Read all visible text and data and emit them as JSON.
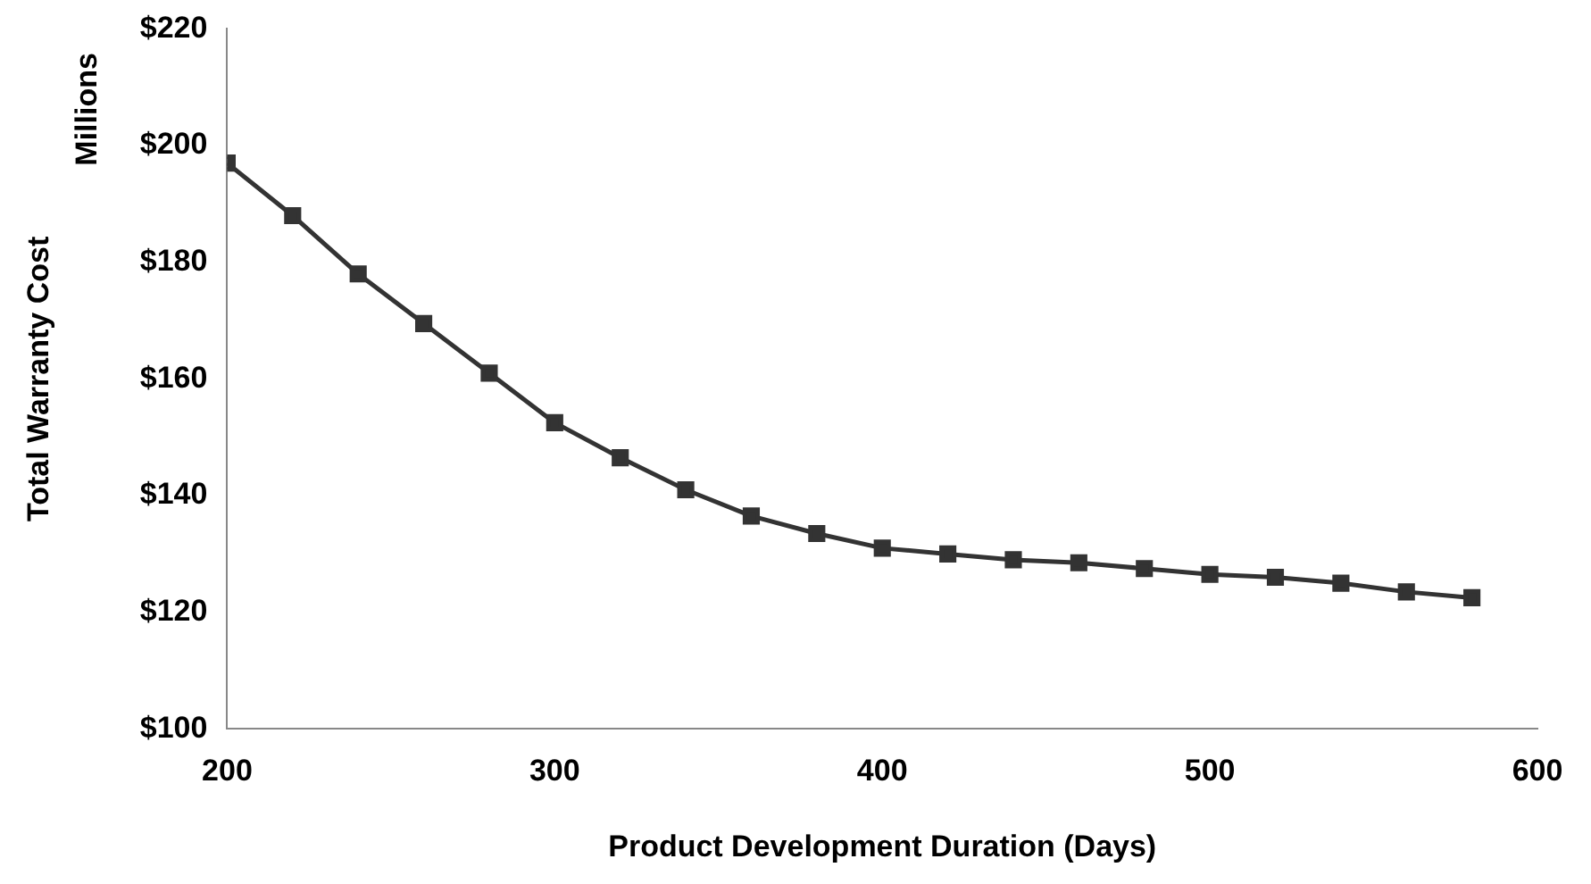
{
  "chart_data": {
    "type": "line",
    "xlabel": "Product Development Duration (Days)",
    "ylabel": "Total Warranty Cost",
    "annotations": [
      "Millions"
    ],
    "x": [
      200,
      220,
      240,
      260,
      280,
      300,
      320,
      340,
      360,
      380,
      400,
      420,
      440,
      460,
      480,
      500,
      520,
      540,
      560,
      580
    ],
    "series": [
      {
        "color": "#333333",
        "values": [
          197,
          188,
          178,
          169.5,
          161,
          152.5,
          146.5,
          141,
          136.5,
          133.5,
          131,
          130,
          129,
          128.5,
          127.5,
          126.5,
          126,
          125,
          123.5,
          122.5
        ]
      }
    ],
    "xlim": [
      200,
      600
    ],
    "xticks": [
      200,
      300,
      400,
      500,
      600
    ],
    "ylim": [
      100,
      220
    ],
    "yticks": [
      {
        "value": 100,
        "label": "$100"
      },
      {
        "value": 120,
        "label": "$120"
      },
      {
        "value": 140,
        "label": "$140"
      },
      {
        "value": 160,
        "label": "$160"
      },
      {
        "value": 180,
        "label": "$180"
      },
      {
        "value": 200,
        "label": "$200"
      },
      {
        "value": 220,
        "label": "$220"
      }
    ],
    "marker": "square",
    "line_style": "solid",
    "grid": false,
    "legend": false
  }
}
